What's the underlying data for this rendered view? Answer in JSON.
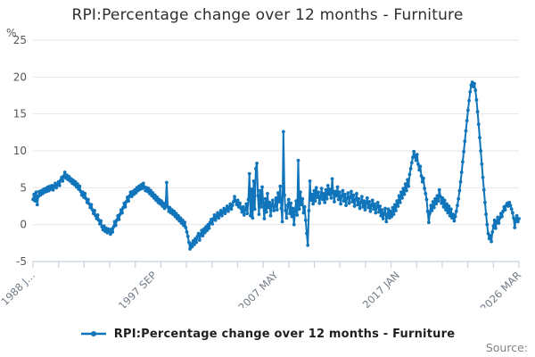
{
  "page": {
    "title": "RPI:Percentage change over 12 months - Furniture"
  },
  "footer": {
    "source_label": "Source:"
  },
  "colors": {
    "line": "#1175bb",
    "grid": "#e6e6e6",
    "axis": "#c5d1de",
    "y_label": "#565656",
    "x_label": "#6e7b88"
  },
  "chart_data": {
    "type": "line",
    "title": "RPI:Percentage change over 12 months - Furniture",
    "unit": "%",
    "xlabel": "",
    "ylabel": "%",
    "x_start": "1988 JAN",
    "x_end": "2026 MAR",
    "frequency": "monthly",
    "ylim": [
      -5,
      25
    ],
    "y_ticks": [
      25,
      20,
      15,
      10,
      5,
      0,
      -5
    ],
    "x_tick_labels": [
      "1988 J…",
      "1997 SEP",
      "2007 MAY",
      "2017 JAN",
      "2026 MAR"
    ],
    "x_minor_tick_count": 20,
    "grid": "horizontal",
    "legend_position": "bottom",
    "series": [
      {
        "name": "RPI:Percentage change over 12 months - Furniture",
        "values": [
          3.4,
          4.1,
          3.2,
          4.4,
          2.7,
          3.8,
          4.5,
          4.0,
          4.6,
          4.2,
          4.8,
          4.4,
          4.9,
          4.5,
          5.1,
          4.6,
          5.2,
          4.8,
          5.3,
          4.7,
          5.2,
          5.6,
          5.0,
          5.4,
          5.8,
          5.3,
          6.0,
          6.4,
          5.9,
          6.6,
          7.1,
          6.3,
          6.7,
          6.1,
          6.5,
          5.9,
          6.2,
          5.6,
          6.0,
          5.4,
          5.8,
          5.1,
          5.5,
          4.8,
          5.2,
          4.5,
          4.0,
          4.4,
          3.7,
          4.2,
          3.5,
          3.0,
          3.4,
          2.8,
          2.3,
          2.7,
          2.0,
          1.5,
          1.9,
          1.2,
          0.8,
          1.3,
          0.6,
          0.1,
          0.5,
          -0.3,
          -0.7,
          -0.2,
          -0.9,
          -0.5,
          -1.1,
          -0.6,
          -0.9,
          -1.3,
          -0.6,
          -1.0,
          -0.3,
          0.4,
          -0.1,
          0.6,
          1.2,
          0.7,
          1.4,
          2.0,
          1.6,
          2.3,
          2.9,
          2.4,
          3.1,
          3.7,
          3.2,
          3.9,
          4.4,
          3.8,
          4.5,
          4.1,
          4.7,
          4.3,
          5.0,
          4.6,
          5.2,
          4.8,
          5.4,
          4.9,
          5.6,
          5.1,
          4.6,
          5.0,
          4.5,
          4.9,
          4.2,
          4.6,
          3.9,
          4.3,
          3.6,
          4.0,
          3.3,
          3.7,
          3.0,
          3.4,
          2.8,
          3.2,
          2.5,
          2.9,
          2.2,
          2.6,
          5.7,
          2.4,
          1.8,
          2.3,
          1.6,
          2.0,
          1.4,
          1.8,
          1.1,
          1.5,
          0.8,
          1.2,
          0.5,
          0.9,
          0.2,
          0.6,
          -0.1,
          0.3,
          -0.4,
          -1.0,
          -1.6,
          -2.4,
          -3.3,
          -2.6,
          -3.0,
          -2.2,
          -2.7,
          -1.9,
          -2.4,
          -1.6,
          -1.2,
          -2.1,
          -1.4,
          -0.8,
          -1.5,
          -0.6,
          -1.1,
          -0.3,
          -0.8,
          0.0,
          -0.5,
          0.3,
          0.7,
          0.1,
          0.8,
          1.3,
          0.6,
          1.1,
          1.6,
          0.9,
          1.4,
          1.9,
          1.2,
          1.7,
          2.2,
          1.5,
          2.0,
          2.5,
          1.8,
          2.3,
          2.8,
          2.1,
          2.6,
          3.1,
          3.8,
          3.2,
          2.7,
          3.3,
          2.4,
          2.9,
          2.2,
          1.7,
          2.4,
          1.3,
          2.0,
          2.8,
          1.5,
          3.4,
          6.9,
          1.2,
          4.8,
          0.9,
          5.9,
          2.1,
          7.6,
          8.3,
          3.9,
          1.4,
          4.6,
          2.4,
          5.1,
          2.9,
          0.8,
          3.5,
          1.7,
          4.2,
          2.3,
          3.0,
          1.2,
          2.6,
          3.3,
          1.9,
          2.5,
          3.6,
          2.0,
          4.3,
          3.1,
          5.2,
          2.2,
          0.4,
          12.6,
          4.0,
          1.9,
          0.9,
          2.6,
          3.4,
          1.5,
          2.9,
          1.1,
          2.2,
          0.0,
          1.8,
          3.2,
          1.3,
          8.7,
          2.1,
          4.4,
          2.7,
          3.5,
          1.6,
          2.4,
          0.6,
          -1.2,
          -2.8,
          1.9,
          5.9,
          3.3,
          4.1,
          2.8,
          4.6,
          3.2,
          5.0,
          3.7,
          4.4,
          2.9,
          3.8,
          4.9,
          3.4,
          4.2,
          3.0,
          4.7,
          3.5,
          5.3,
          4.1,
          4.8,
          3.6,
          6.2,
          4.3,
          3.1,
          4.5,
          3.9,
          5.1,
          3.4,
          4.4,
          2.8,
          3.9,
          4.6,
          3.2,
          4.1,
          2.6,
          3.6,
          4.3,
          2.9,
          3.7,
          4.5,
          3.1,
          4.0,
          2.5,
          3.4,
          4.2,
          2.7,
          3.5,
          2.2,
          3.0,
          3.8,
          2.4,
          3.2,
          2.0,
          2.9,
          3.6,
          2.3,
          3.1,
          1.8,
          2.6,
          3.3,
          2.1,
          2.8,
          1.6,
          2.4,
          3.0,
          1.7,
          2.5,
          1.2,
          2.0,
          0.8,
          1.5,
          2.2,
          0.4,
          1.3,
          2.1,
          0.9,
          1.8,
          1.1,
          2.3,
          1.4,
          2.7,
          1.9,
          3.2,
          2.5,
          3.9,
          3.0,
          4.4,
          3.6,
          4.9,
          4.1,
          5.5,
          4.6,
          6.1,
          5.2,
          6.8,
          7.6,
          8.4,
          9.1,
          9.9,
          9.3,
          8.7,
          9.5,
          8.2,
          7.4,
          7.9,
          6.6,
          5.8,
          6.3,
          4.9,
          4.2,
          3.4,
          1.8,
          0.3,
          1.5,
          2.6,
          1.9,
          3.1,
          2.3,
          3.5,
          2.8,
          3.9,
          3.2,
          4.7,
          3.8,
          2.9,
          3.6,
          2.4,
          3.3,
          2.0,
          2.8,
          1.6,
          2.5,
          1.2,
          2.1,
          0.9,
          1.4,
          0.5,
          1.1,
          1.8,
          2.6,
          3.5,
          4.6,
          5.8,
          7.1,
          8.5,
          9.9,
          11.3,
          12.7,
          14.1,
          15.5,
          16.8,
          18.0,
          18.9,
          19.3,
          18.7,
          19.1,
          18.2,
          16.9,
          15.3,
          13.6,
          11.8,
          10.0,
          8.2,
          6.4,
          4.7,
          3.0,
          1.4,
          0.0,
          -1.2,
          -1.9,
          -1.5,
          -2.3,
          -1.0,
          -0.2,
          0.6,
          -0.5,
          0.3,
          1.0,
          0.2,
          0.9,
          1.5,
          1.1,
          1.8,
          2.4,
          2.0,
          2.6,
          2.9,
          2.5,
          3.0,
          2.6,
          2.1,
          1.6,
          0.9,
          -0.4,
          0.6,
          1.2,
          0.4,
          0.8
        ]
      }
    ]
  }
}
